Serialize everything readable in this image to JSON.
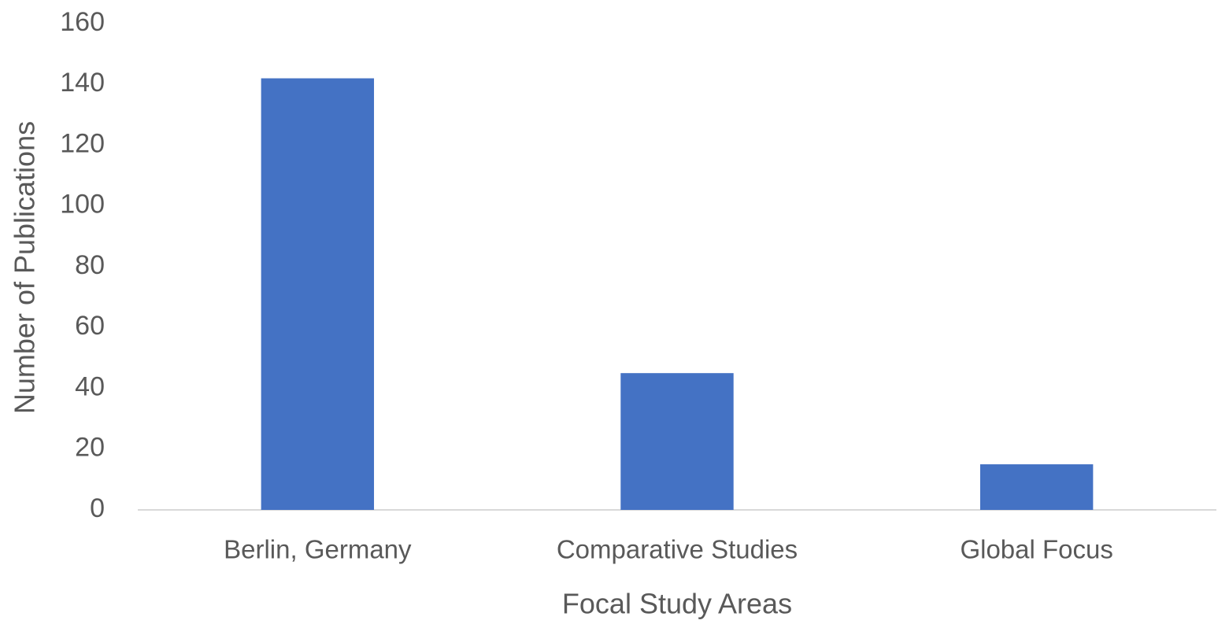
{
  "chart_data": {
    "type": "bar",
    "x_label": "Focal Study Areas",
    "y_label": "Number of Publications",
    "categories": [
      "Berlin, Germany",
      "Comparative Studies",
      "Global Focus"
    ],
    "values": [
      142,
      45,
      15
    ],
    "color": "#4472c4",
    "ylim": [
      0,
      160
    ],
    "yticks": [
      0,
      20,
      40,
      60,
      80,
      100,
      120,
      140,
      160
    ],
    "grid": false
  }
}
